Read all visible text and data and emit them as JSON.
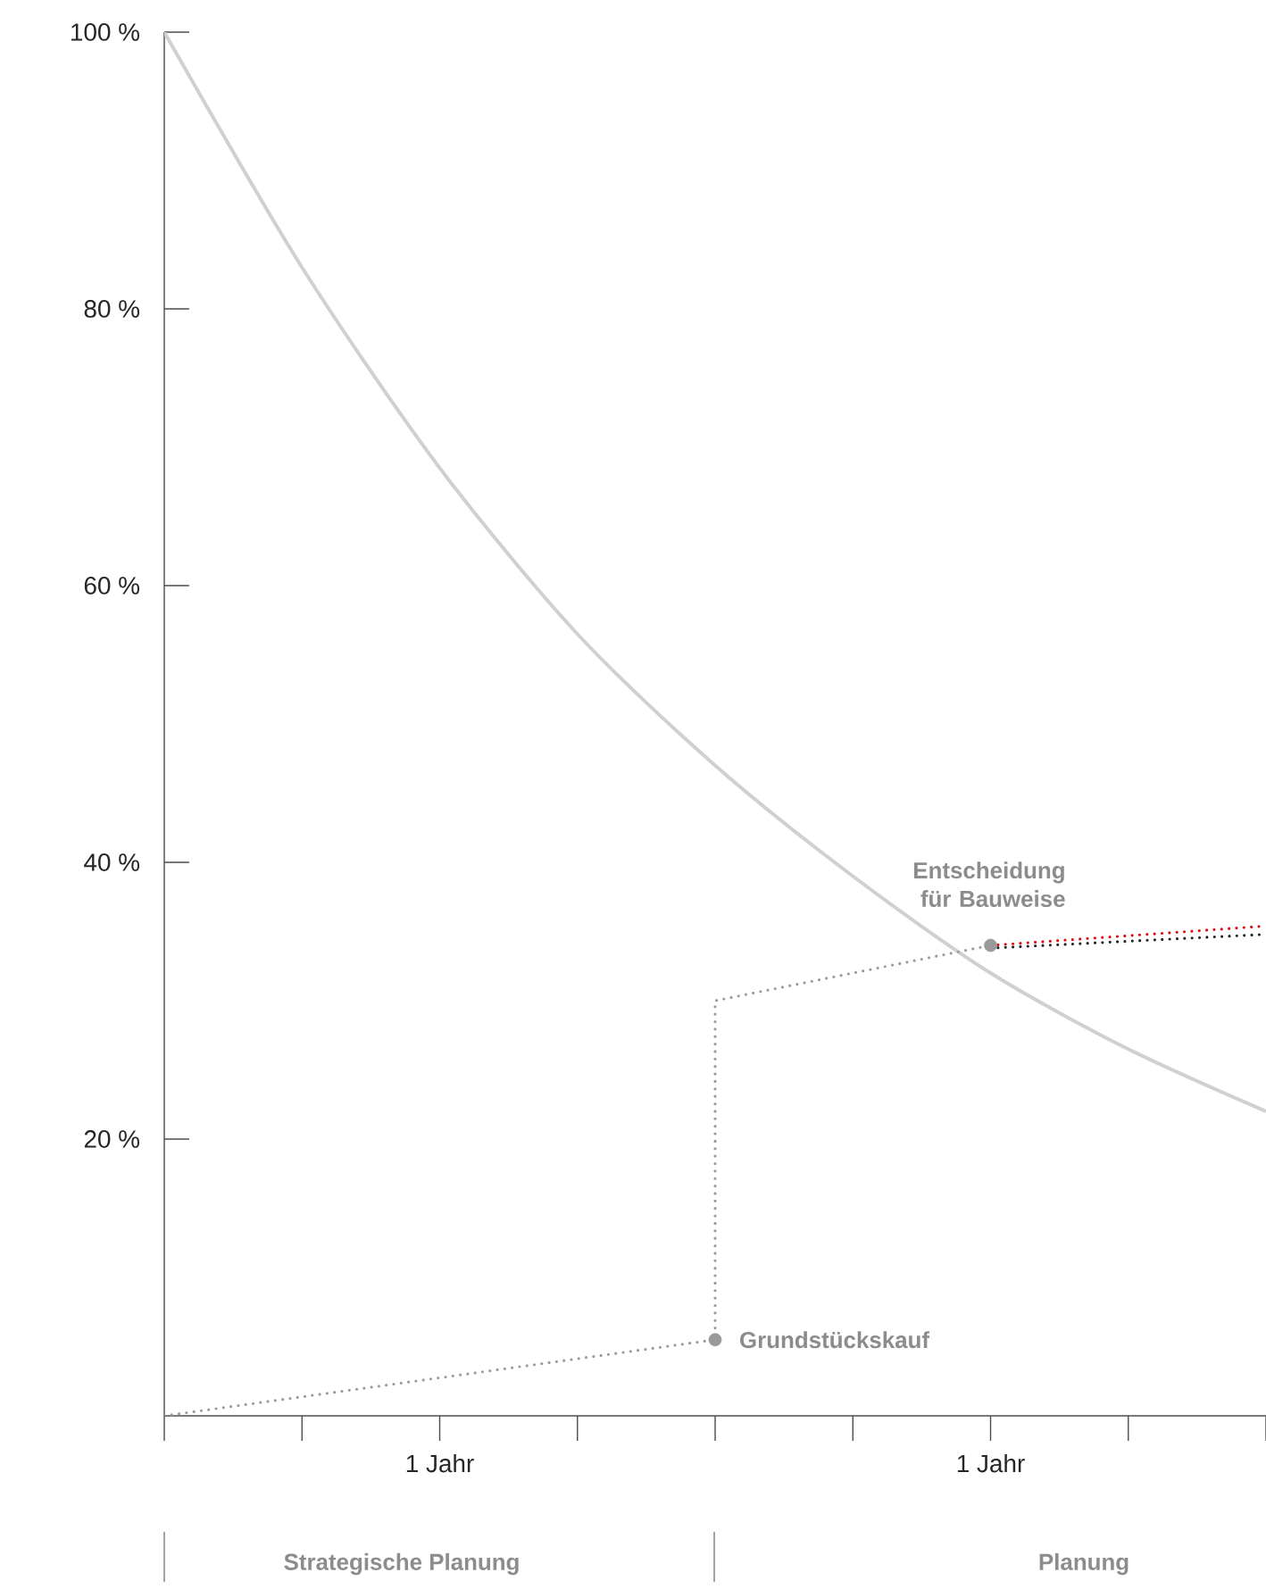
{
  "chart_data": {
    "type": "line",
    "x": [
      0,
      0.25,
      0.5,
      0.75,
      1,
      1.25,
      1.5,
      1.75,
      2
    ],
    "series": [
      {
        "color": "#d0d0d0",
        "line_style": "solid",
        "values": [
          100,
          83,
          68.5,
          56.5,
          47,
          39,
          32,
          26.5,
          22
        ]
      },
      {
        "color": "#9a9a9a",
        "line_style": "dotted",
        "x": [
          0,
          1,
          1,
          1.5
        ],
        "values": [
          0,
          5.5,
          30,
          34
        ]
      },
      {
        "color": "#e30613",
        "line_style": "dotted",
        "x": [
          1.5,
          2
        ],
        "values": [
          34,
          35.4
        ]
      },
      {
        "color": "#222222",
        "line_style": "dotted",
        "x": [
          1.5,
          2
        ],
        "values": [
          33.8,
          34.8
        ]
      },
      {
        "type": "scatter",
        "color": "#9a9a9a",
        "marker": "circle",
        "x": [
          1,
          1.5
        ],
        "values": [
          5.5,
          34
        ]
      }
    ],
    "xlim": [
      0,
      2
    ],
    "xticks": [
      {
        "value": 0,
        "label": null
      },
      {
        "value": 0.25,
        "label": null
      },
      {
        "value": 0.5,
        "label": "1 Jahr"
      },
      {
        "value": 0.75,
        "label": null
      },
      {
        "value": 1,
        "label": null
      },
      {
        "value": 1.25,
        "label": null
      },
      {
        "value": 1.5,
        "label": "1 Jahr"
      },
      {
        "value": 1.75,
        "label": null
      },
      {
        "value": 2,
        "label": null
      }
    ],
    "ylim": [
      0,
      100
    ],
    "yticks": [
      {
        "value": 20,
        "label": "20 %"
      },
      {
        "value": 40,
        "label": "40 %"
      },
      {
        "value": 60,
        "label": "60 %"
      },
      {
        "value": 80,
        "label": "80 %"
      },
      {
        "value": 100,
        "label": "100 %"
      }
    ],
    "annotations": [
      {
        "text": "Grundstückskauf",
        "x": 1,
        "y": 5.5
      },
      {
        "text": "Entscheidung für Bauweise",
        "x": 1.5,
        "y": 34
      },
      "Strategische Planung",
      "Planung"
    ]
  }
}
